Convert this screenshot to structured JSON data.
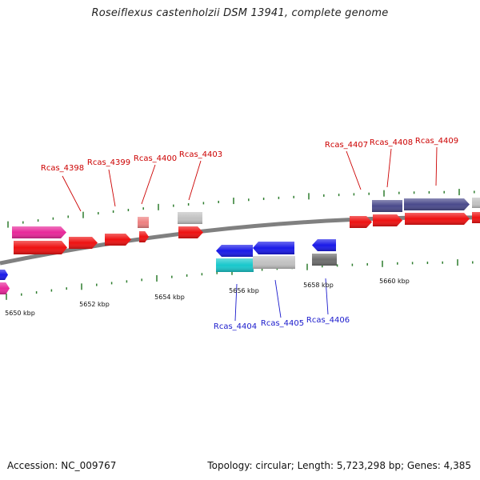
{
  "title": "Roseiflexus castenholzii DSM 13941, complete genome",
  "accession": "Accession: NC_009767",
  "topology": "Topology: circular; Length: 5,723,298 bp; Genes: 4,385",
  "colors": {
    "backbone": "#808080",
    "red": "#ee1111",
    "pink": "#e8289a",
    "blue": "#1a1ae8",
    "slate": "#4a4a8c",
    "gray": "#c2c2c2",
    "darkgray": "#6e6e6e",
    "cyan": "#18c8cc",
    "salmon": "#ee8080",
    "tick": "#2e7d2e",
    "label_top": "#cc0000",
    "label_bottom": "#1a1acc"
  },
  "scale_labels": [
    "5650 kbp",
    "5652 kbp",
    "5654 kbp",
    "5656 kbp",
    "5658 kbp",
    "5660 kbp"
  ],
  "gene_labels_top": [
    "Rcas_4398",
    "Rcas_4399",
    "Rcas_4400",
    "Rcas_4403",
    "Rcas_4407",
    "Rcas_4408",
    "Rcas_4409"
  ],
  "gene_labels_bottom": [
    "Rcas_4404",
    "Rcas_4405",
    "Rcas_4406"
  ]
}
